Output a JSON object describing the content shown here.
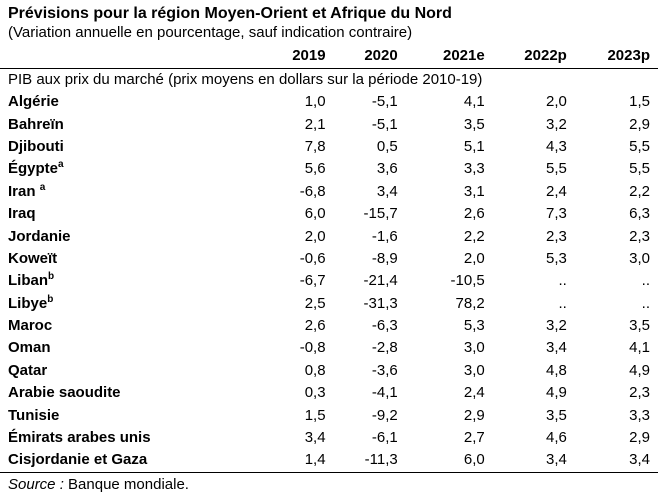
{
  "title": "Prévisions pour la région Moyen-Orient et Afrique du Nord",
  "subtitle": "(Variation annuelle en pourcentage, sauf indication contraire)",
  "headers": [
    "2019",
    "2020",
    "2021e",
    "2022p",
    "2023p"
  ],
  "section_label": "PIB aux prix du marché (prix moyens en dollars sur la période 2010-19)",
  "rows": [
    {
      "name": "Algérie",
      "sup": "",
      "values": [
        "1,0",
        "-5,1",
        "4,1",
        "2,0",
        "1,5"
      ]
    },
    {
      "name": "Bahreïn",
      "sup": "",
      "values": [
        "2,1",
        "-5,1",
        "3,5",
        "3,2",
        "2,9"
      ]
    },
    {
      "name": "Djibouti",
      "sup": "",
      "values": [
        "7,8",
        "0,5",
        "5,1",
        "4,3",
        "5,5"
      ]
    },
    {
      "name": "Égypte",
      "sup": "a",
      "values": [
        "5,6",
        "3,6",
        "3,3",
        "5,5",
        "5,5"
      ]
    },
    {
      "name": "Iran ",
      "sup": "a",
      "values": [
        "-6,8",
        "3,4",
        "3,1",
        "2,4",
        "2,2"
      ]
    },
    {
      "name": "Iraq",
      "sup": "",
      "values": [
        "6,0",
        "-15,7",
        "2,6",
        "7,3",
        "6,3"
      ]
    },
    {
      "name": "Jordanie",
      "sup": "",
      "values": [
        "2,0",
        "-1,6",
        "2,2",
        "2,3",
        "2,3"
      ]
    },
    {
      "name": "Koweït",
      "sup": "",
      "values": [
        "-0,6",
        "-8,9",
        "2,0",
        "5,3",
        "3,0"
      ]
    },
    {
      "name": "Liban",
      "sup": "b",
      "values": [
        "-6,7",
        "-21,4",
        "-10,5",
        "..",
        ".."
      ]
    },
    {
      "name": "Libye",
      "sup": "b",
      "values": [
        "2,5",
        "-31,3",
        "78,2",
        "..",
        ".."
      ]
    },
    {
      "name": "Maroc",
      "sup": "",
      "values": [
        "2,6",
        "-6,3",
        "5,3",
        "3,2",
        "3,5"
      ]
    },
    {
      "name": "Oman",
      "sup": "",
      "values": [
        "-0,8",
        "-2,8",
        "3,0",
        "3,4",
        "4,1"
      ]
    },
    {
      "name": "Qatar",
      "sup": "",
      "values": [
        "0,8",
        "-3,6",
        "3,0",
        "4,8",
        "4,9"
      ]
    },
    {
      "name": "Arabie saoudite",
      "sup": "",
      "values": [
        "0,3",
        "-4,1",
        "2,4",
        "4,9",
        "2,3"
      ]
    },
    {
      "name": "Tunisie",
      "sup": "",
      "values": [
        "1,5",
        "-9,2",
        "2,9",
        "3,5",
        "3,3"
      ]
    },
    {
      "name": "Émirats arabes unis",
      "sup": "",
      "values": [
        "3,4",
        "-6,1",
        "2,7",
        "4,6",
        "2,9"
      ]
    },
    {
      "name": "Cisjordanie et Gaza",
      "sup": "",
      "values": [
        "1,4",
        "-11,3",
        "6,0",
        "3,4",
        "3,4"
      ]
    }
  ],
  "source": {
    "label": "Source :",
    "text": " Banque mondiale."
  }
}
